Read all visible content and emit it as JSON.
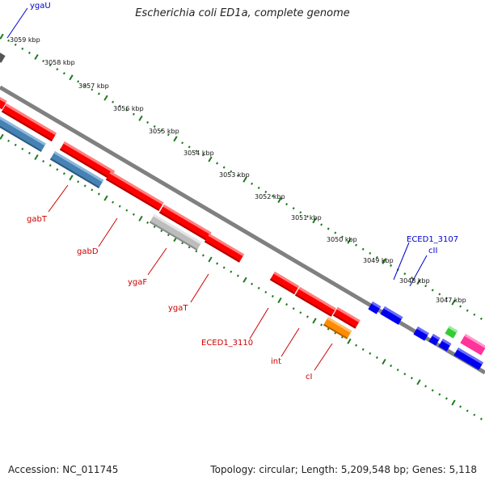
{
  "title": "Escherichia coli ED1a, complete genome",
  "footer": {
    "accession": "Accession: NC_011745",
    "summary": "Topology: circular; Length: 5,209,548 bp; Genes: 5,118"
  },
  "colors": {
    "backbone": "#808080",
    "tick": "#1f7a1f",
    "cds_forward": "#ff0000",
    "cds_reverse": "#4682b4",
    "pseudo": "#bdbdbd",
    "label_red": "#cc0000",
    "label_blue": "#0000cc",
    "small_blue": "#0000ee",
    "small_green": "#33cc33",
    "orange": "#ff8c00",
    "magenta": "#ff3399"
  },
  "scale_labels": [
    "3059 kbp",
    "3058 kbp",
    "3057 kbp",
    "3056 kbp",
    "3055 kbp",
    "3054 kbp",
    "3053 kbp",
    "3052 kbp",
    "3051 kbp",
    "3050 kbp",
    "3049 kbp",
    "3048 kbp",
    "3047 kbp"
  ],
  "gene_labels": {
    "ygaU": "ygaU",
    "gabT": "gabT",
    "gabD": "gabD",
    "ygaF": "ygaF",
    "ygaT": "ygaT",
    "ECED1_3110": "ECED1_3110",
    "int": "int",
    "cI": "cI",
    "ECED1_3107": "ECED1_3107",
    "cII": "cII"
  }
}
